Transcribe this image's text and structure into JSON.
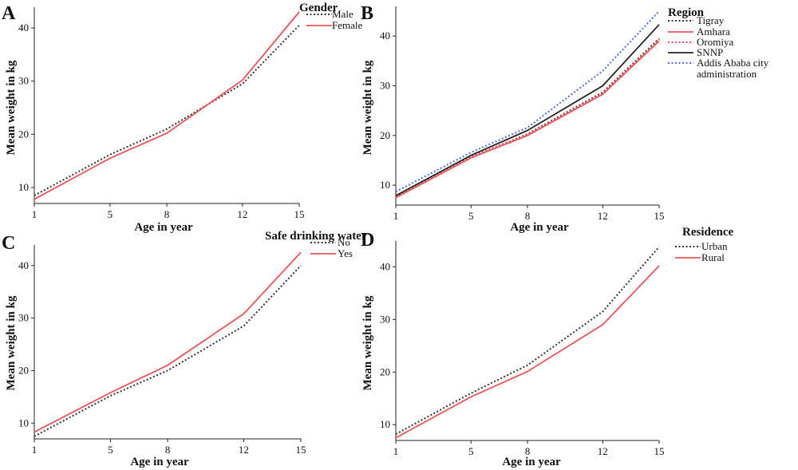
{
  "chart_data": [
    {
      "type": "line",
      "panel": "A",
      "x": [
        1,
        5,
        8,
        12,
        15
      ],
      "xlabel": "Age in year",
      "ylabel": "Mean weight in kg",
      "yticks": [
        10,
        20,
        30,
        40
      ],
      "ylim": [
        7,
        43
      ],
      "legend_title": "Gender",
      "series": [
        {
          "name": "Male",
          "style": "dotted",
          "color": "#333333",
          "values": [
            8.5,
            16.2,
            21.0,
            29.5,
            40.5
          ]
        },
        {
          "name": "Female",
          "style": "solid",
          "color": "#e8545a",
          "values": [
            7.8,
            15.5,
            20.2,
            30.2,
            43.0
          ]
        }
      ]
    },
    {
      "type": "line",
      "panel": "B",
      "x": [
        1,
        5,
        8,
        12,
        15
      ],
      "xlabel": "Age in year",
      "ylabel": "Mean weight in kg",
      "yticks": [
        10,
        20,
        30,
        40
      ],
      "ylim": [
        6,
        45
      ],
      "legend_title": "Region",
      "series": [
        {
          "name": "Tigray",
          "style": "dotted",
          "color": "#333333",
          "values": [
            7.8,
            15.6,
            20.3,
            28.7,
            39.5
          ]
        },
        {
          "name": "Amhara",
          "style": "solid",
          "color": "#e8545a",
          "values": [
            7.5,
            15.5,
            20.0,
            28.3,
            39.0
          ]
        },
        {
          "name": "Oromiya",
          "style": "dotted",
          "color": "#e8545a",
          "values": [
            7.7,
            15.8,
            20.2,
            28.5,
            39.3
          ]
        },
        {
          "name": "SNNP",
          "style": "solid",
          "color": "#222222",
          "values": [
            7.9,
            16.0,
            21.0,
            30.0,
            42.3
          ]
        },
        {
          "name": "Addis Ababa city administration",
          "style": "dotted",
          "color": "#4a6fd6",
          "values": [
            8.7,
            16.6,
            21.6,
            33.0,
            45.0
          ]
        }
      ]
    },
    {
      "type": "line",
      "panel": "C",
      "x": [
        1,
        5,
        8,
        12,
        15
      ],
      "xlabel": "Age in year",
      "ylabel": "Mean weight in kg",
      "yticks": [
        10,
        20,
        30,
        40
      ],
      "ylim": [
        7,
        43
      ],
      "legend_title": "Safe drinking water",
      "series": [
        {
          "name": "No",
          "style": "dotted",
          "color": "#333333",
          "values": [
            7.5,
            15.2,
            20.0,
            28.5,
            40.0
          ]
        },
        {
          "name": "Yes",
          "style": "solid",
          "color": "#e8545a",
          "values": [
            8.3,
            15.8,
            21.0,
            30.8,
            42.5
          ]
        }
      ]
    },
    {
      "type": "line",
      "panel": "D",
      "x": [
        1,
        5,
        8,
        12,
        15
      ],
      "xlabel": "Age in year",
      "ylabel": "Mean weight in kg",
      "yticks": [
        10,
        20,
        30,
        40
      ],
      "ylim": [
        7,
        44
      ],
      "legend_title": "Residence",
      "series": [
        {
          "name": "Urban",
          "style": "dotted",
          "color": "#333333",
          "values": [
            8.2,
            16.0,
            21.3,
            31.5,
            43.8
          ]
        },
        {
          "name": "Rural",
          "style": "solid",
          "color": "#e8545a",
          "values": [
            7.5,
            15.3,
            20.1,
            29.0,
            40.2
          ]
        }
      ]
    }
  ]
}
